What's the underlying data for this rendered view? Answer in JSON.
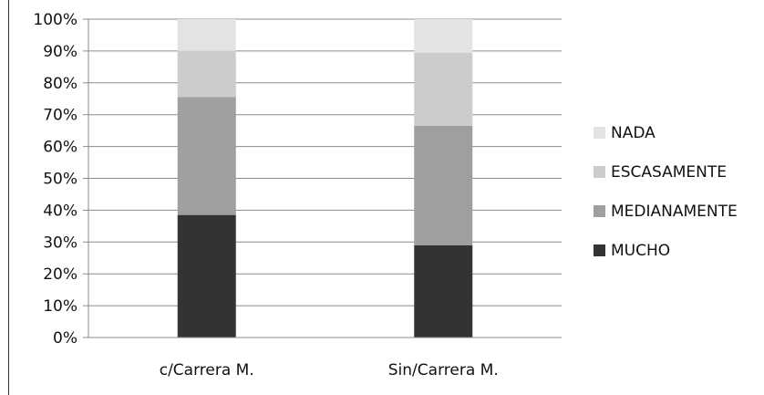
{
  "chart_data": {
    "type": "bar",
    "stacked": true,
    "percent_stacked": true,
    "categories": [
      "c/Carrera M.",
      "Sin/Carrera M."
    ],
    "series": [
      {
        "name": "MUCHO",
        "values": [
          38.5,
          29
        ],
        "color": "#333333"
      },
      {
        "name": "MEDIANAMENTE",
        "values": [
          37,
          37.5
        ],
        "color": "#9f9f9f"
      },
      {
        "name": "ESCASAMENTE",
        "values": [
          14.5,
          23
        ],
        "color": "#cccccc"
      },
      {
        "name": "NADA",
        "values": [
          10,
          10.5
        ],
        "color": "#e3e3e3"
      }
    ],
    "y_ticks": [
      "0%",
      "10%",
      "20%",
      "30%",
      "40%",
      "50%",
      "60%",
      "70%",
      "80%",
      "90%",
      "100%"
    ],
    "ylim": [
      0,
      100
    ],
    "grid": true,
    "legend_position": "right",
    "legend_order": [
      "NADA",
      "ESCASAMENTE",
      "MEDIANAMENTE",
      "MUCHO"
    ],
    "title": "",
    "xlabel": "",
    "ylabel": ""
  }
}
